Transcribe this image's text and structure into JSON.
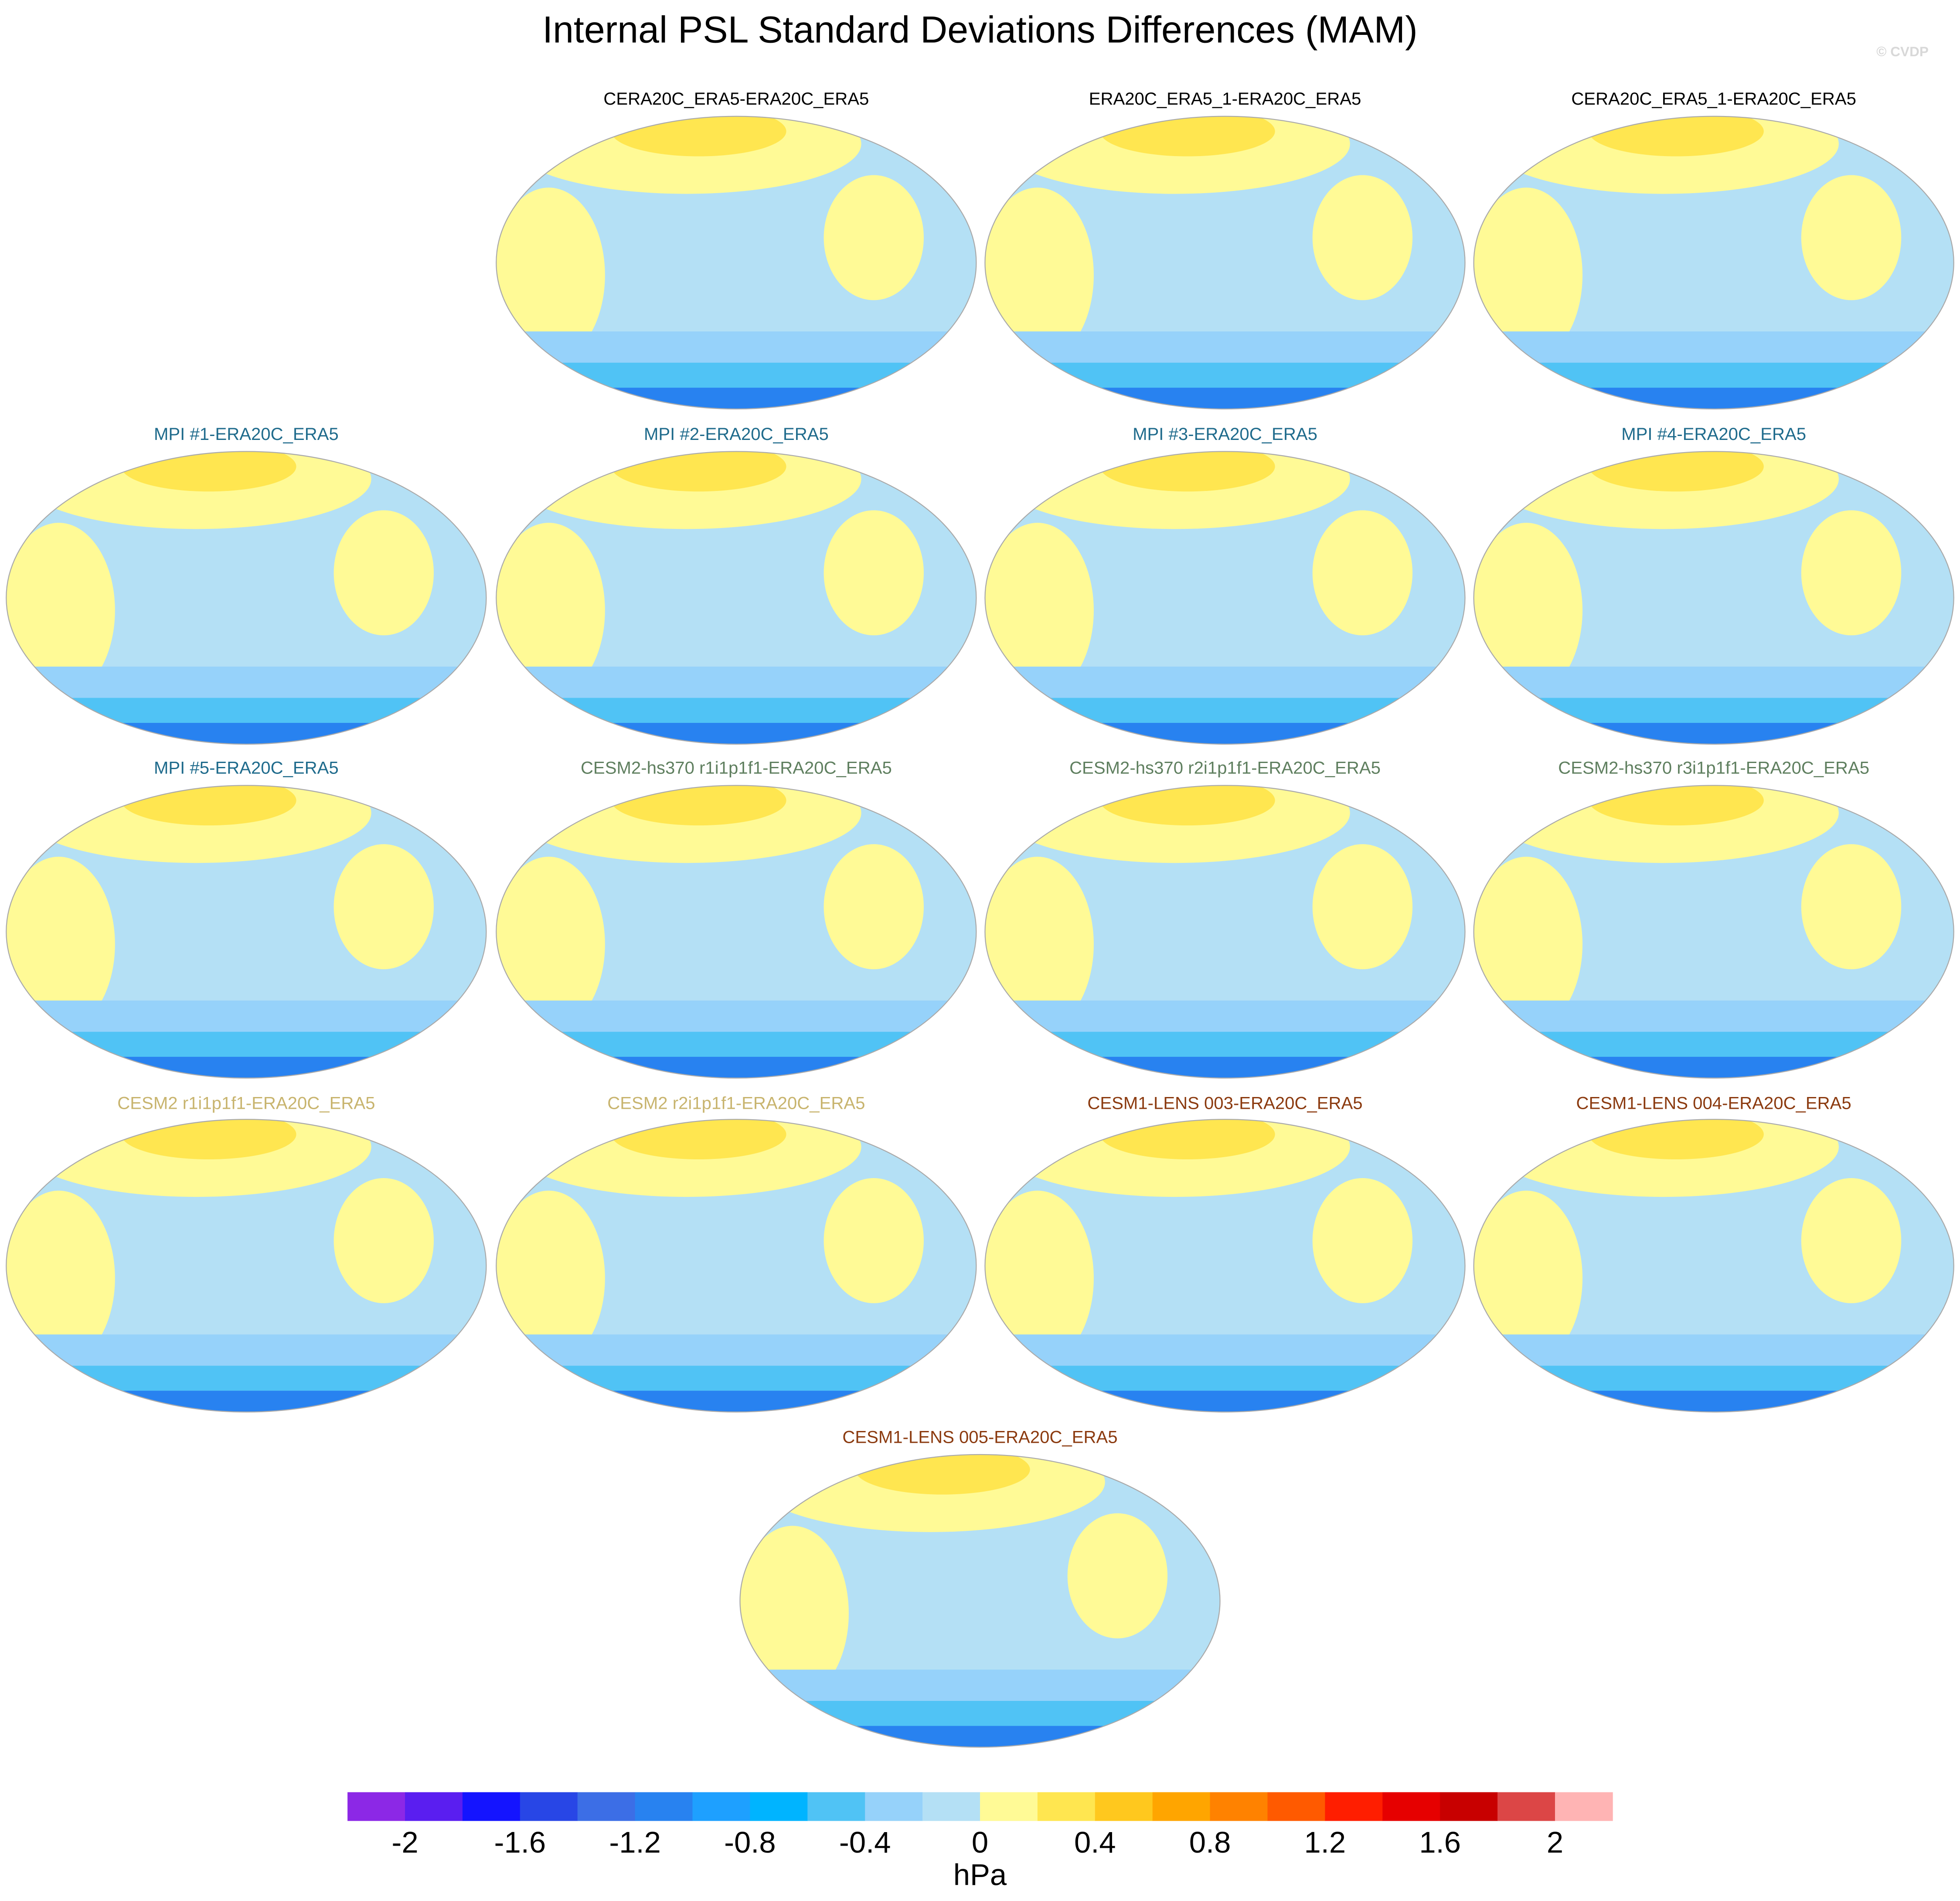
{
  "chart_data": {
    "type": "map",
    "title": "Internal PSL Standard Deviations Differences (MAM)",
    "watermark": "© CVDP",
    "panels": [
      {
        "title": "CERA20C_ERA5-ERA20C_ERA5",
        "color": "#000000"
      },
      {
        "title": "ERA20C_ERA5_1-ERA20C_ERA5",
        "color": "#000000"
      },
      {
        "title": "CERA20C_ERA5_1-ERA20C_ERA5",
        "color": "#000000"
      },
      {
        "title": "MPI #1-ERA20C_ERA5",
        "color": "#1f6b8c"
      },
      {
        "title": "MPI #2-ERA20C_ERA5",
        "color": "#1f6b8c"
      },
      {
        "title": "MPI #3-ERA20C_ERA5",
        "color": "#1f6b8c"
      },
      {
        "title": "MPI #4-ERA20C_ERA5",
        "color": "#1f6b8c"
      },
      {
        "title": "MPI #5-ERA20C_ERA5",
        "color": "#1f6b8c"
      },
      {
        "title": "CESM2-hs370 r1i1p1f1-ERA20C_ERA5",
        "color": "#5f7f5f"
      },
      {
        "title": "CESM2-hs370 r2i1p1f1-ERA20C_ERA5",
        "color": "#5f7f5f"
      },
      {
        "title": "CESM2-hs370 r3i1p1f1-ERA20C_ERA5",
        "color": "#5f7f5f"
      },
      {
        "title": "CESM2 r1i1p1f1-ERA20C_ERA5",
        "color": "#c8b46e"
      },
      {
        "title": "CESM2 r2i1p1f1-ERA20C_ERA5",
        "color": "#c8b46e"
      },
      {
        "title": "CESM1-LENS 003-ERA20C_ERA5",
        "color": "#8b3a0f"
      },
      {
        "title": "CESM1-LENS 004-ERA20C_ERA5",
        "color": "#8b3a0f"
      },
      {
        "title": "CESM1-LENS 005-ERA20C_ERA5",
        "color": "#8b3a0f"
      }
    ],
    "colorbar": {
      "label": "hPa",
      "xlim": [
        -2.2,
        2.2
      ],
      "xticks": [
        -2,
        -1.6,
        -1.2,
        -0.8,
        -0.4,
        0,
        0.4,
        0.8,
        1.2,
        1.6,
        2
      ],
      "colors": [
        "#8c28e6",
        "#5a1ef0",
        "#1414ff",
        "#2846e6",
        "#3c6ee6",
        "#2882f0",
        "#1ea0ff",
        "#00b4ff",
        "#50c3f5",
        "#96d2fa",
        "#b4e0f5",
        "#fffa96",
        "#ffe650",
        "#ffc81e",
        "#ffa500",
        "#ff8200",
        "#ff5a00",
        "#ff1e00",
        "#e60000",
        "#c80000",
        "#dc4646",
        "#ffb4b4"
      ]
    }
  }
}
